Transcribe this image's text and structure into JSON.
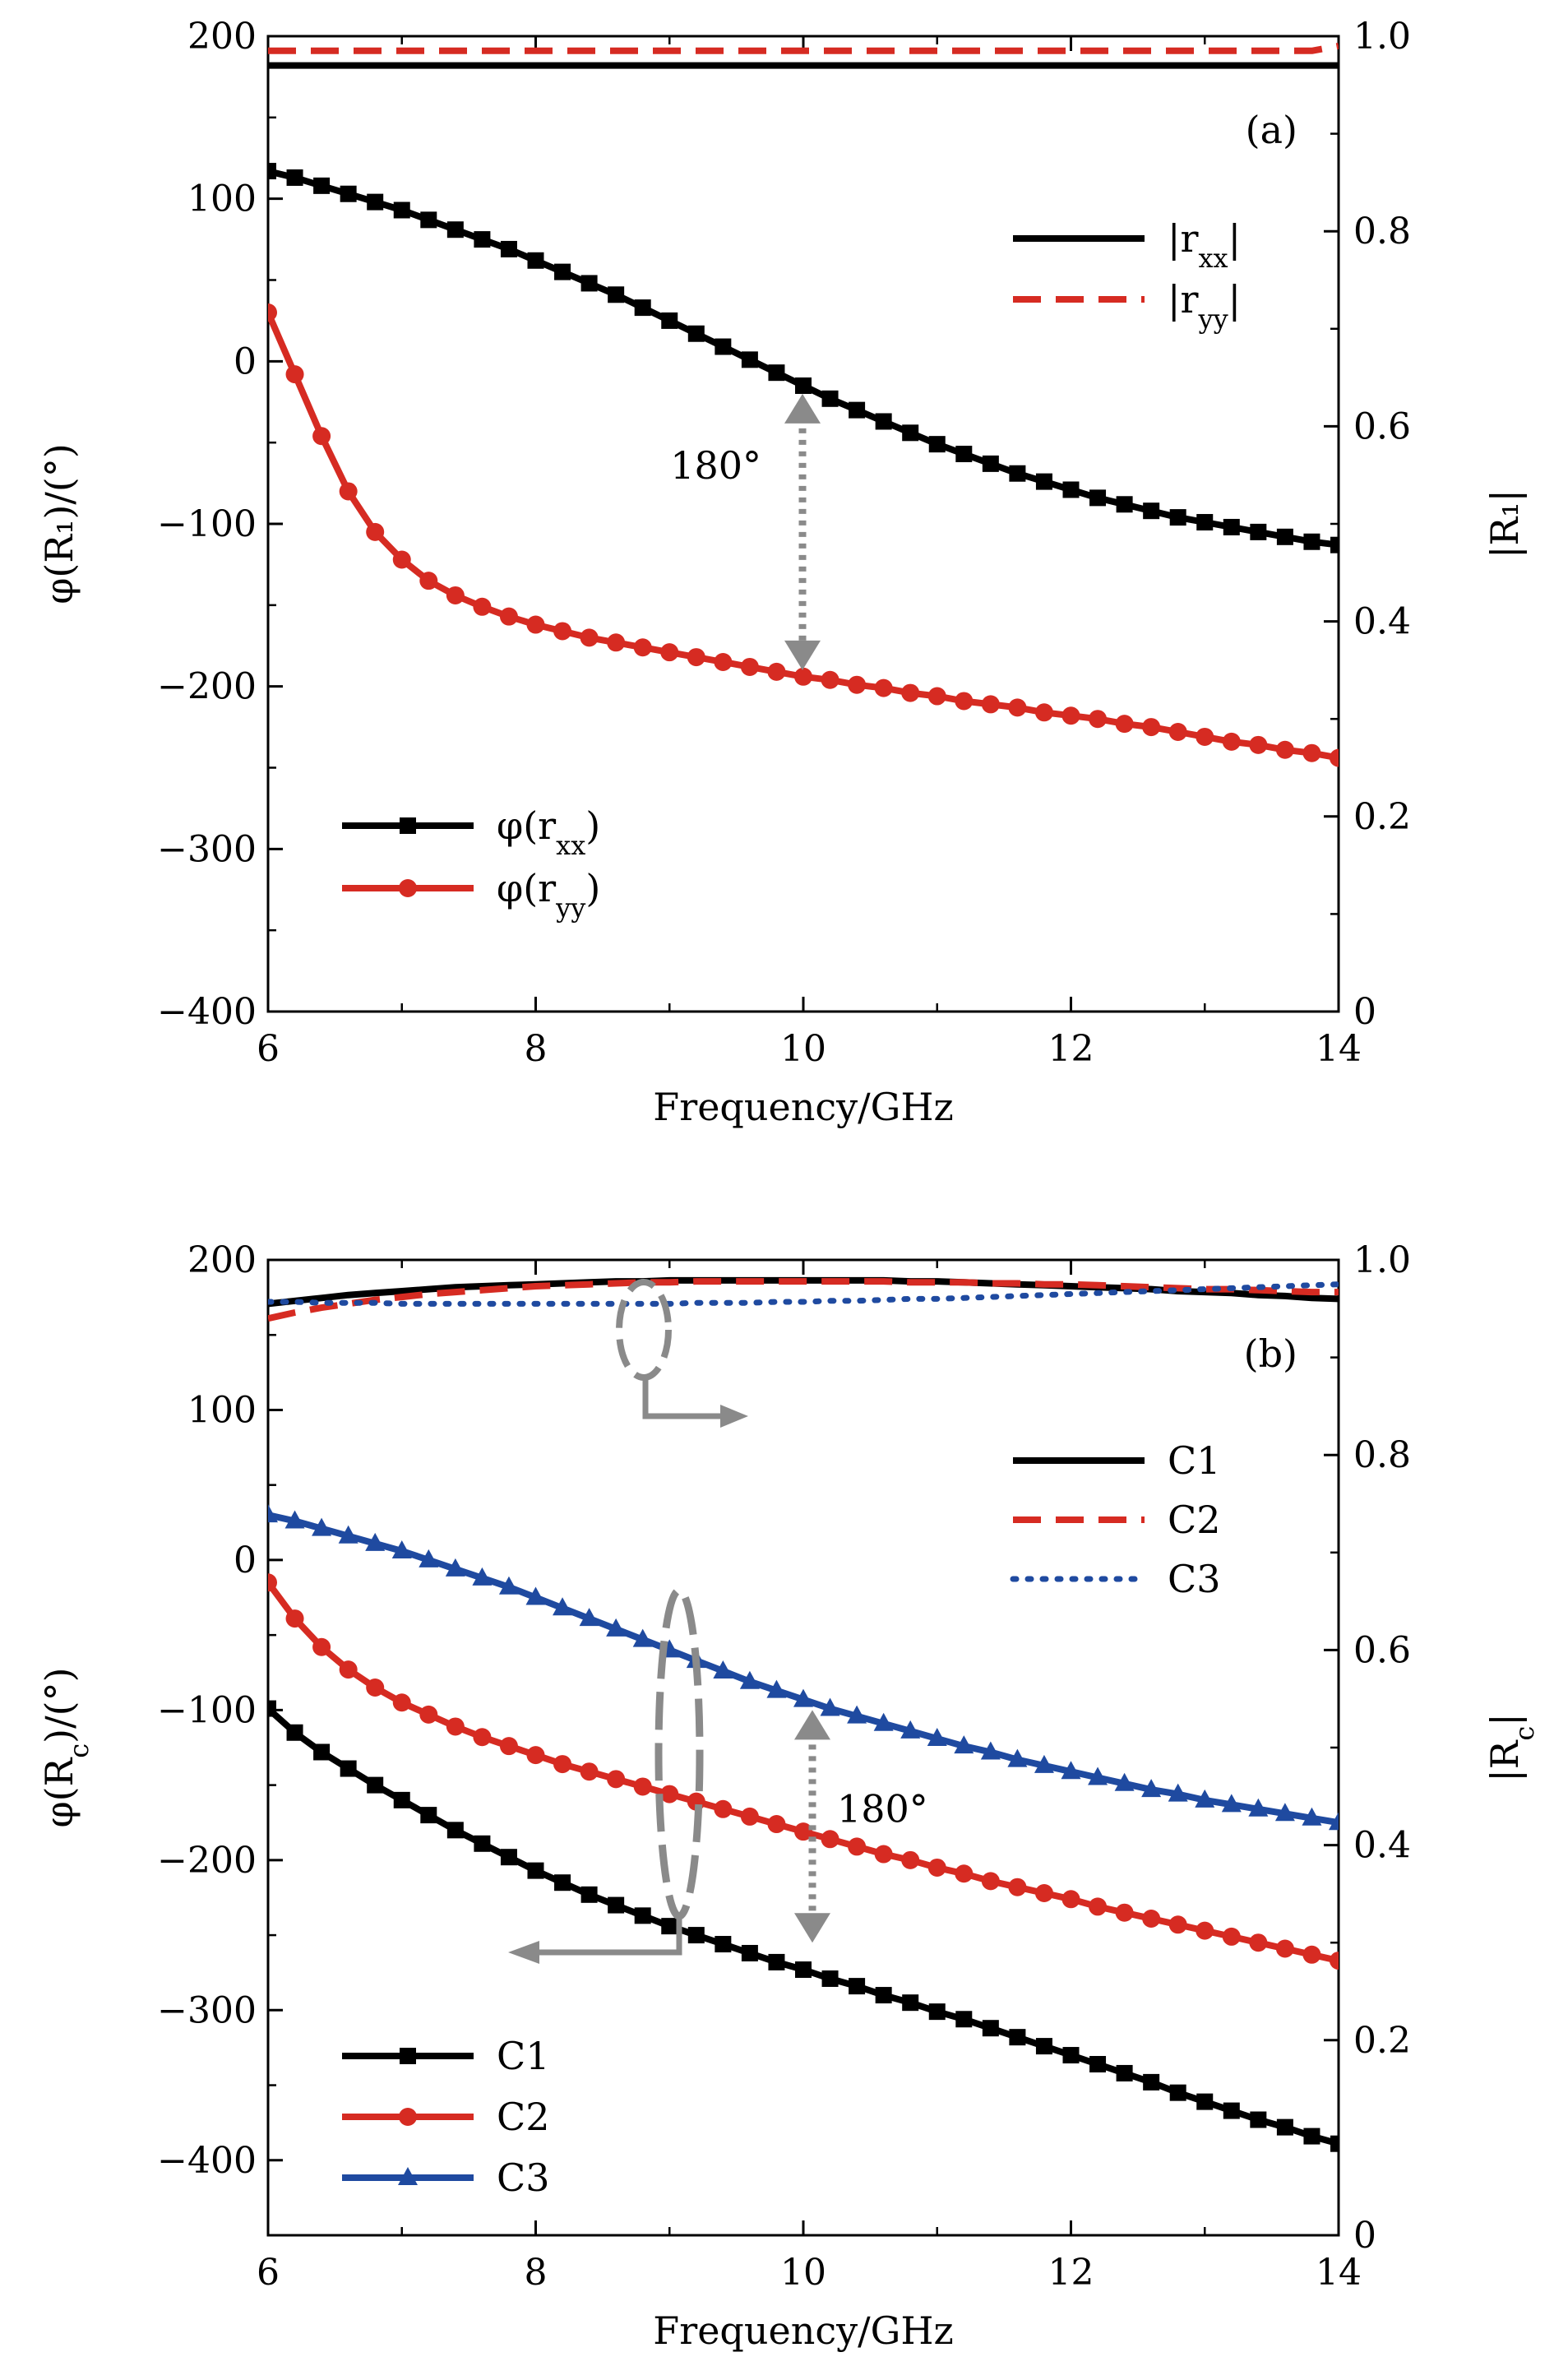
{
  "chart_data": [
    {
      "type": "line",
      "panel_label": "(a)",
      "xlabel": "Frequency/GHz",
      "ylabel": "φ(R₁)/(°)",
      "ylabel_right": "|R₁|",
      "xlim": [
        6,
        14
      ],
      "ylim": [
        -400,
        200
      ],
      "ylim_right": [
        0,
        1.0
      ],
      "x_ticks": [
        "6",
        "8",
        "10",
        "12",
        "14"
      ],
      "y_ticks": [
        "200",
        "100",
        "0",
        "−100",
        "−200",
        "−300",
        "−400"
      ],
      "y_right_ticks": [
        "1.0",
        "0.8",
        "0.6",
        "0.4",
        "0.2",
        "0"
      ],
      "grid": false,
      "annotation": "180°",
      "legend_phase": {
        "placement": "bottom-left",
        "entries": [
          "φ(r",
          "φ(r"
        ]
      },
      "legend_mag": {
        "placement": "top-right",
        "entries": [
          "|r",
          "|r"
        ]
      },
      "x": [
        6,
        6.2,
        6.4,
        6.6,
        6.8,
        7,
        7.2,
        7.4,
        7.6,
        7.8,
        8,
        8.2,
        8.4,
        8.6,
        8.8,
        9,
        9.2,
        9.4,
        9.6,
        9.8,
        10,
        10.2,
        10.4,
        10.6,
        10.8,
        11,
        11.2,
        11.4,
        11.6,
        11.8,
        12,
        12.2,
        12.4,
        12.6,
        12.8,
        13,
        13.2,
        13.4,
        13.6,
        13.8,
        14
      ],
      "series": [
        {
          "name_base": "φ(r",
          "sub": "xx",
          "name_close": ")",
          "axis": "left",
          "style": "solid",
          "marker": "square",
          "color": "#000000",
          "values": [
            117,
            113,
            108,
            103,
            98,
            93,
            87,
            81,
            75,
            69,
            62,
            55,
            48,
            41,
            33,
            25,
            17,
            9,
            1,
            -7,
            -15,
            -23,
            -30,
            -37,
            -44,
            -51,
            -57,
            -63,
            -69,
            -74,
            -79,
            -84,
            -88,
            -92,
            -96,
            -99,
            -102,
            -105,
            -108,
            -111,
            -113
          ]
        },
        {
          "name_base": "φ(r",
          "sub": "yy",
          "name_close": ")",
          "axis": "left",
          "style": "solid",
          "marker": "circle",
          "color": "#d62b22",
          "values": [
            30,
            -8,
            -46,
            -80,
            -105,
            -122,
            -135,
            -144,
            -151,
            -157,
            -162,
            -166,
            -170,
            -173,
            -176,
            -179,
            -182,
            -185,
            -188,
            -191,
            -194,
            -196,
            -199,
            -201,
            -204,
            -206,
            -209,
            -211,
            -213,
            -216,
            -218,
            -220,
            -223,
            -225,
            -228,
            -231,
            -234,
            -236,
            -239,
            -241,
            -244
          ]
        },
        {
          "name_base": "|r",
          "sub": "xx",
          "name_close": "|",
          "axis": "right",
          "style": "solid",
          "color": "#000000",
          "values": [
            0.97,
            0.97,
            0.97,
            0.97,
            0.97,
            0.97,
            0.97,
            0.97,
            0.97,
            0.97,
            0.97,
            0.97,
            0.97,
            0.97,
            0.97,
            0.97,
            0.97,
            0.97,
            0.97,
            0.97,
            0.97,
            0.97,
            0.97,
            0.97,
            0.97,
            0.97,
            0.97,
            0.97,
            0.97,
            0.97,
            0.97,
            0.97,
            0.97,
            0.97,
            0.97,
            0.97,
            0.97,
            0.97,
            0.97,
            0.97,
            0.97
          ]
        },
        {
          "name_base": "|r",
          "sub": "yy",
          "name_close": "|",
          "axis": "right",
          "style": "dashed",
          "color": "#d62b22",
          "values": [
            0.985,
            0.985,
            0.985,
            0.985,
            0.985,
            0.985,
            0.985,
            0.985,
            0.985,
            0.985,
            0.985,
            0.985,
            0.985,
            0.985,
            0.985,
            0.985,
            0.985,
            0.985,
            0.985,
            0.985,
            0.985,
            0.985,
            0.985,
            0.985,
            0.985,
            0.985,
            0.985,
            0.985,
            0.985,
            0.985,
            0.985,
            0.985,
            0.985,
            0.985,
            0.985,
            0.985,
            0.985,
            0.985,
            0.985,
            0.985,
            0.99
          ]
        }
      ]
    },
    {
      "type": "line",
      "panel_label": "(b)",
      "xlabel": "Frequency/GHz",
      "ylabel": "φ(R",
      "ylabel_sub": "c",
      "ylabel_close": ")/(°)",
      "ylabel_right": "|R",
      "ylabel_right_sub": "c",
      "ylabel_right_close": "|",
      "xlim": [
        6,
        14
      ],
      "ylim": [
        -450,
        200
      ],
      "ylim_right": [
        0,
        1.0
      ],
      "x_ticks": [
        "6",
        "8",
        "10",
        "12",
        "14"
      ],
      "y_ticks": [
        "200",
        "100",
        "0",
        "−100",
        "−200",
        "−300",
        "−400"
      ],
      "y_right_ticks": [
        "1.0",
        "0.8",
        "0.6",
        "0.4",
        "0.2",
        "0"
      ],
      "grid": false,
      "annotation": "180°",
      "legend_phase": {
        "placement": "bottom-left",
        "entries": [
          "C1",
          "C2",
          "C3"
        ]
      },
      "legend_mag": {
        "placement": "top-right",
        "entries": [
          "C1",
          "C2",
          "C3"
        ]
      },
      "x": [
        6,
        6.2,
        6.4,
        6.6,
        6.8,
        7,
        7.2,
        7.4,
        7.6,
        7.8,
        8,
        8.2,
        8.4,
        8.6,
        8.8,
        9,
        9.2,
        9.4,
        9.6,
        9.8,
        10,
        10.2,
        10.4,
        10.6,
        10.8,
        11,
        11.2,
        11.4,
        11.6,
        11.8,
        12,
        12.2,
        12.4,
        12.6,
        12.8,
        13,
        13.2,
        13.4,
        13.6,
        13.8,
        14
      ],
      "series": [
        {
          "name": "C1",
          "axis": "left",
          "style": "solid",
          "marker": "square",
          "color": "#000000",
          "values": [
            -99,
            -115,
            -128,
            -139,
            -150,
            -160,
            -170,
            -180,
            -189,
            -198,
            -207,
            -215,
            -223,
            -230,
            -237,
            -244,
            -250,
            -256,
            -262,
            -268,
            -273,
            -279,
            -284,
            -290,
            -295,
            -301,
            -306,
            -312,
            -318,
            -324,
            -330,
            -336,
            -342,
            -348,
            -355,
            -361,
            -367,
            -373,
            -378,
            -384,
            -389
          ]
        },
        {
          "name": "C2",
          "axis": "left",
          "style": "solid",
          "marker": "circle",
          "color": "#d62b22",
          "values": [
            -15,
            -39,
            -58,
            -73,
            -85,
            -95,
            -103,
            -111,
            -118,
            -124,
            -130,
            -136,
            -141,
            -146,
            -151,
            -156,
            -161,
            -166,
            -171,
            -176,
            -181,
            -186,
            -191,
            -196,
            -200,
            -205,
            -209,
            -214,
            -218,
            -222,
            -226,
            -231,
            -235,
            -239,
            -243,
            -247,
            -251,
            -255,
            -259,
            -263,
            -267
          ]
        },
        {
          "name": "C3",
          "axis": "left",
          "style": "solid",
          "marker": "triangle",
          "color": "#1f4aa0",
          "values": [
            30,
            26,
            21,
            16,
            11,
            6,
            0,
            -6,
            -12,
            -18,
            -25,
            -32,
            -39,
            -46,
            -53,
            -60,
            -67,
            -74,
            -81,
            -87,
            -93,
            -99,
            -104,
            -109,
            -114,
            -119,
            -124,
            -128,
            -133,
            -137,
            -141,
            -145,
            -149,
            -153,
            -156,
            -160,
            -163,
            -166,
            -169,
            -172,
            -175
          ]
        },
        {
          "name": "C1",
          "axis": "right",
          "style": "solid",
          "color": "#000000",
          "values": [
            0.955,
            0.958,
            0.961,
            0.964,
            0.966,
            0.968,
            0.97,
            0.972,
            0.973,
            0.974,
            0.975,
            0.976,
            0.977,
            0.978,
            0.978,
            0.979,
            0.979,
            0.979,
            0.979,
            0.979,
            0.979,
            0.979,
            0.979,
            0.979,
            0.978,
            0.978,
            0.977,
            0.976,
            0.975,
            0.974,
            0.973,
            0.972,
            0.971,
            0.97,
            0.968,
            0.967,
            0.966,
            0.964,
            0.963,
            0.961,
            0.96
          ]
        },
        {
          "name": "C2",
          "axis": "right",
          "style": "dashed",
          "color": "#d62b22",
          "values": [
            0.94,
            0.946,
            0.951,
            0.955,
            0.959,
            0.962,
            0.965,
            0.967,
            0.969,
            0.971,
            0.973,
            0.974,
            0.975,
            0.976,
            0.977,
            0.977,
            0.978,
            0.978,
            0.978,
            0.978,
            0.978,
            0.978,
            0.978,
            0.978,
            0.977,
            0.977,
            0.977,
            0.976,
            0.976,
            0.975,
            0.975,
            0.974,
            0.973,
            0.972,
            0.971,
            0.97,
            0.97,
            0.969,
            0.968,
            0.967,
            0.967
          ]
        },
        {
          "name": "C3",
          "axis": "right",
          "style": "dotted",
          "color": "#1f4aa0",
          "values": [
            0.957,
            0.957,
            0.956,
            0.956,
            0.956,
            0.955,
            0.955,
            0.955,
            0.955,
            0.955,
            0.955,
            0.955,
            0.955,
            0.955,
            0.955,
            0.955,
            0.956,
            0.956,
            0.956,
            0.957,
            0.957,
            0.958,
            0.958,
            0.959,
            0.96,
            0.96,
            0.961,
            0.962,
            0.963,
            0.964,
            0.965,
            0.966,
            0.967,
            0.968,
            0.969,
            0.97,
            0.971,
            0.972,
            0.973,
            0.974,
            0.975
          ]
        }
      ]
    }
  ]
}
